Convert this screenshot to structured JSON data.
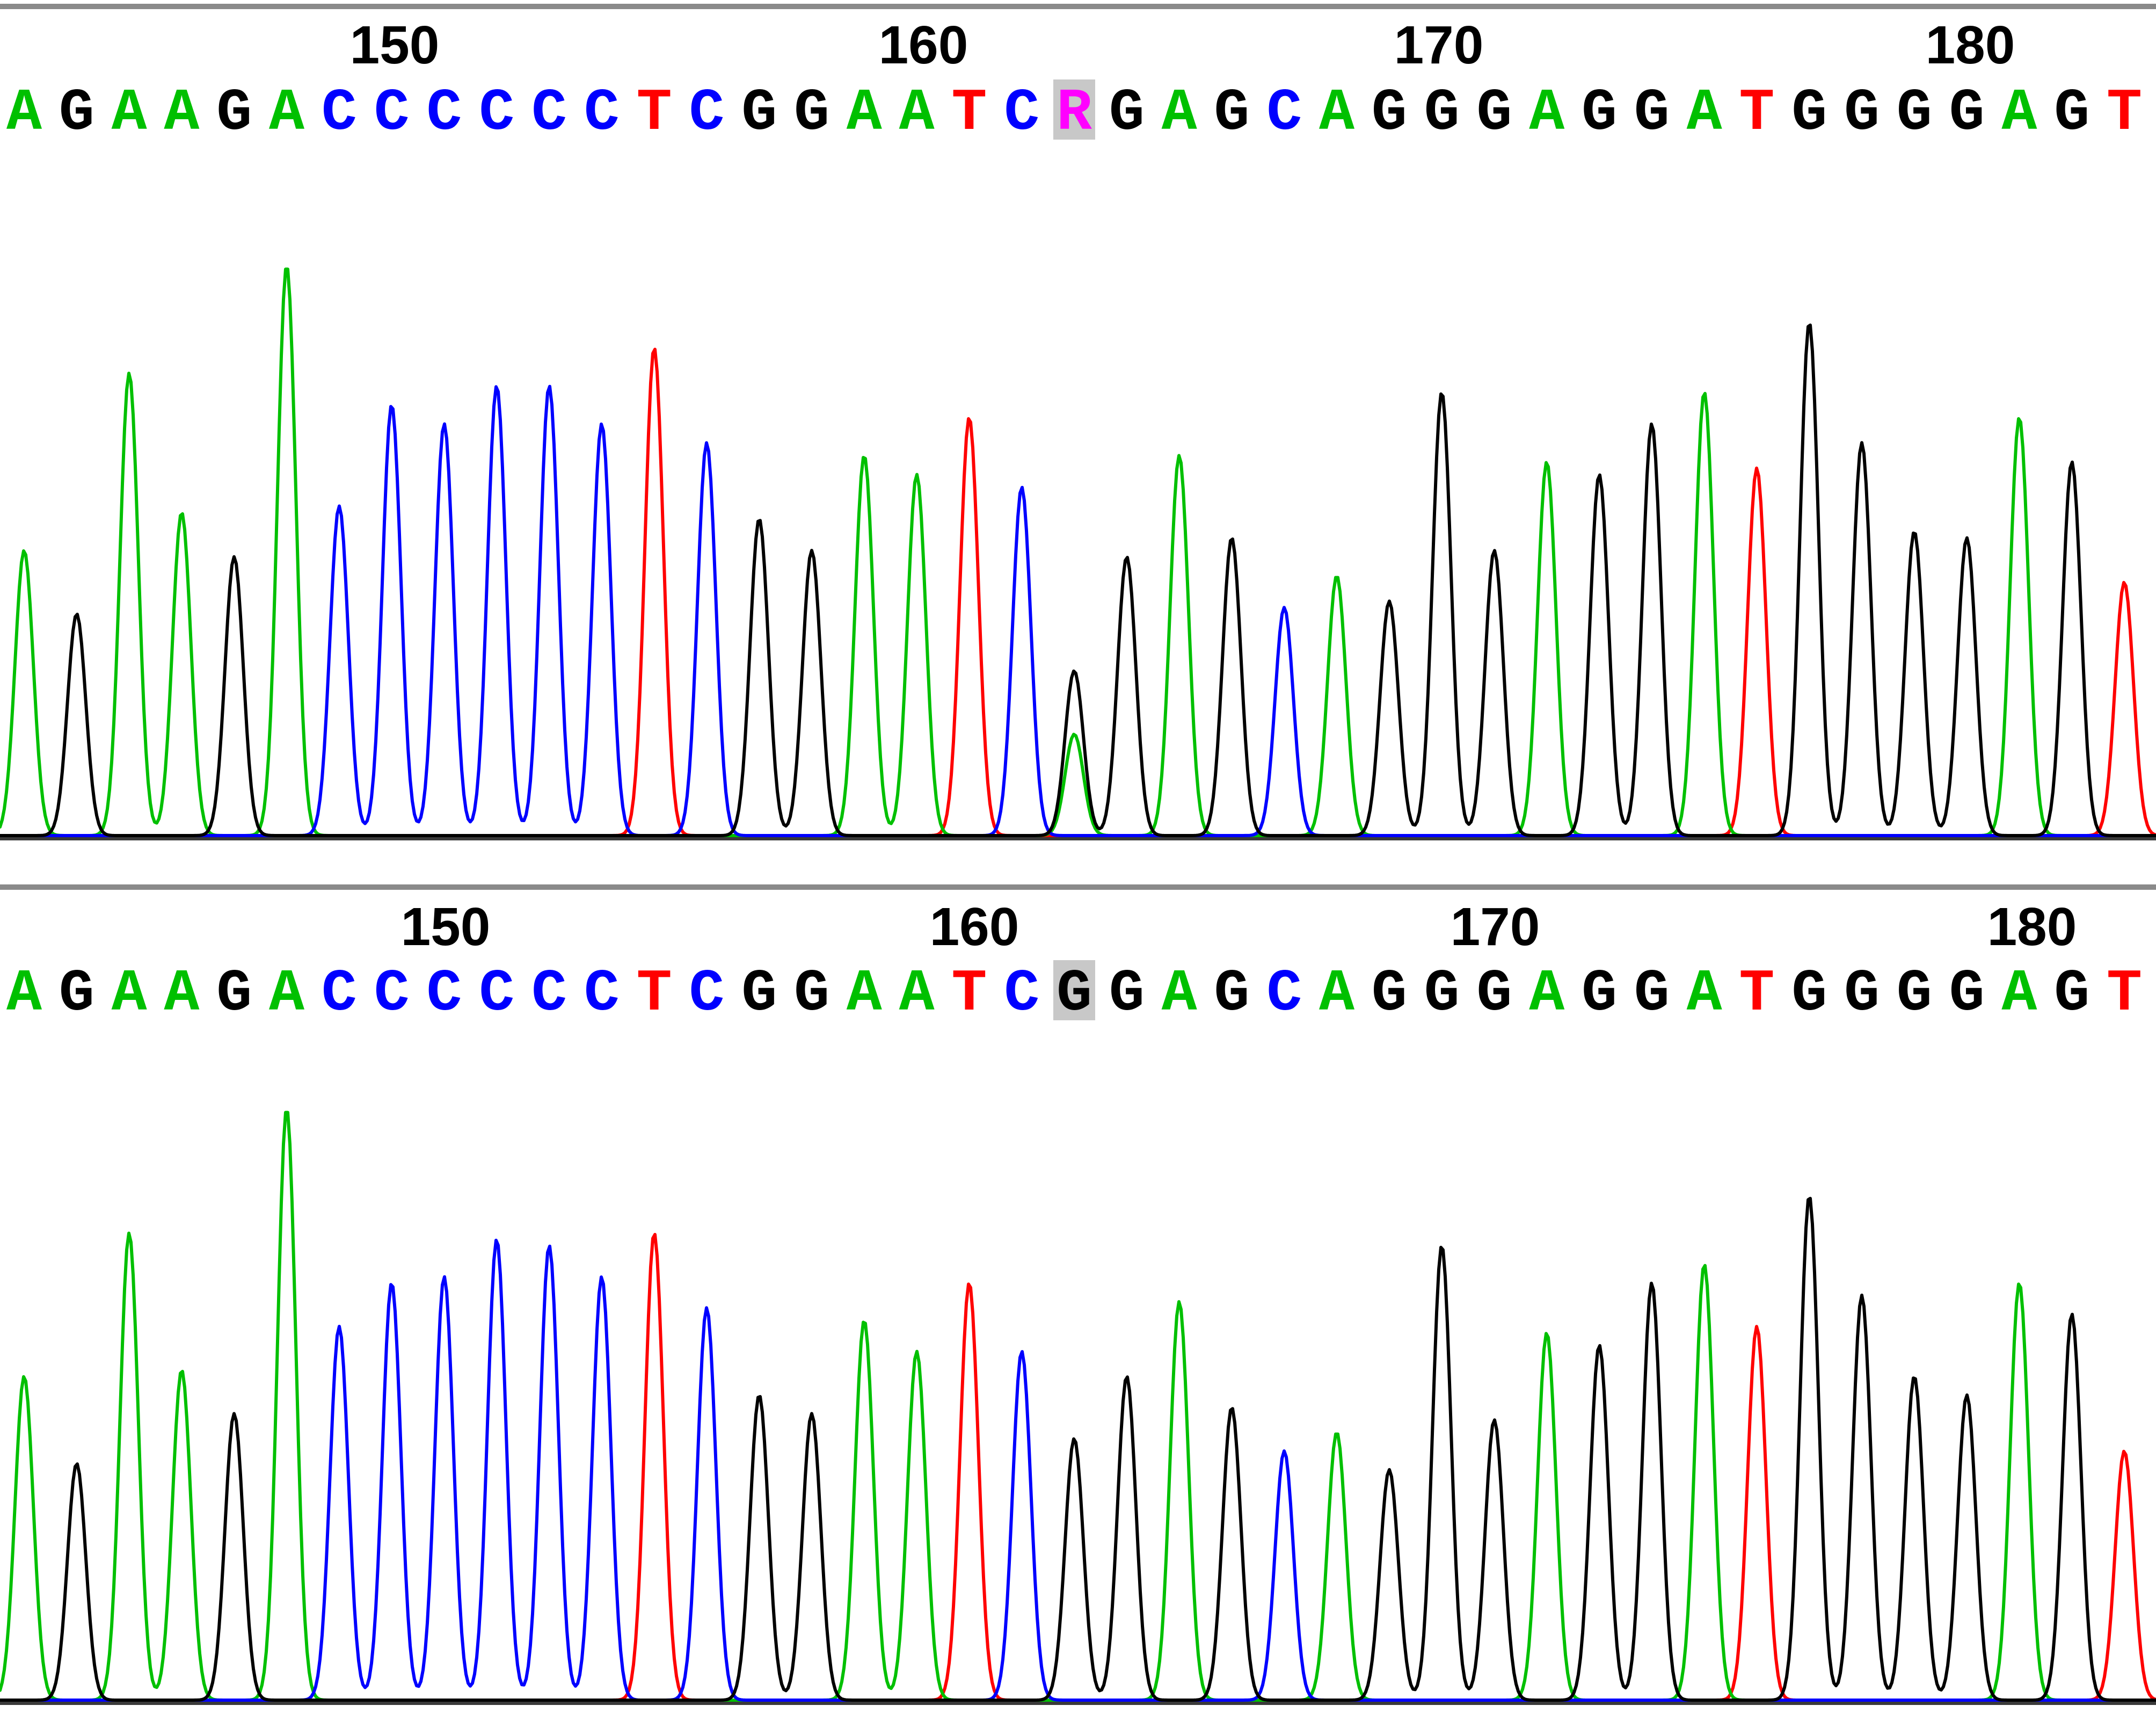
{
  "chart_data": [
    {
      "type": "line",
      "panel": "top",
      "position_labels": [
        "150",
        "160",
        "170",
        "180"
      ],
      "sequence": [
        "A",
        "G",
        "A",
        "A",
        "G",
        "A",
        "C",
        "C",
        "C",
        "C",
        "C",
        "C",
        "T",
        "C",
        "G",
        "G",
        "A",
        "A",
        "T",
        "C",
        "R",
        "G",
        "A",
        "G",
        "C",
        "A",
        "G",
        "G",
        "G",
        "A",
        "G",
        "G",
        "A",
        "T",
        "G",
        "G",
        "G",
        "G",
        "A",
        "G",
        "T"
      ],
      "highlight_index": 20,
      "highlight_base": "R",
      "peak_heights": [
        0.45,
        0.35,
        0.73,
        0.51,
        0.44,
        0.9,
        0.52,
        0.68,
        0.65,
        0.71,
        0.71,
        0.65,
        0.77,
        0.62,
        0.5,
        0.45,
        0.6,
        0.57,
        0.66,
        0.55,
        0.26,
        0.44,
        0.6,
        0.47,
        0.36,
        0.41,
        0.37,
        0.7,
        0.45,
        0.59,
        0.57,
        0.65,
        0.7,
        0.58,
        0.81,
        0.62,
        0.48,
        0.47,
        0.66,
        0.59,
        0.4
      ],
      "secondary_peaks": [
        {
          "index": 20,
          "base": "A",
          "height": 0.16
        }
      ],
      "base_colors": {
        "A": "#00c000",
        "C": "#0000ff",
        "G": "#000000",
        "T": "#ff0000",
        "R": "#ff00ff"
      }
    },
    {
      "type": "line",
      "panel": "bottom",
      "position_labels": [
        "150",
        "160",
        "170",
        "180"
      ],
      "sequence": [
        "A",
        "G",
        "A",
        "A",
        "G",
        "A",
        "C",
        "C",
        "C",
        "C",
        "C",
        "C",
        "T",
        "C",
        "G",
        "G",
        "A",
        "A",
        "T",
        "C",
        "G",
        "G",
        "A",
        "G",
        "C",
        "A",
        "G",
        "G",
        "G",
        "A",
        "G",
        "G",
        "A",
        "T",
        "G",
        "G",
        "G",
        "G",
        "A",
        "G",
        "T"
      ],
      "highlight_index": 20,
      "highlight_base": "G",
      "peak_heights": [
        0.52,
        0.38,
        0.75,
        0.53,
        0.46,
        0.95,
        0.6,
        0.67,
        0.68,
        0.74,
        0.73,
        0.68,
        0.75,
        0.63,
        0.49,
        0.46,
        0.61,
        0.56,
        0.67,
        0.56,
        0.42,
        0.52,
        0.64,
        0.47,
        0.4,
        0.43,
        0.37,
        0.73,
        0.45,
        0.59,
        0.57,
        0.67,
        0.7,
        0.6,
        0.81,
        0.65,
        0.52,
        0.49,
        0.67,
        0.62,
        0.4
      ],
      "secondary_peaks": [],
      "base_colors": {
        "A": "#00c000",
        "C": "#0000ff",
        "G": "#000000",
        "T": "#ff0000",
        "R": "#ff00ff"
      }
    }
  ]
}
